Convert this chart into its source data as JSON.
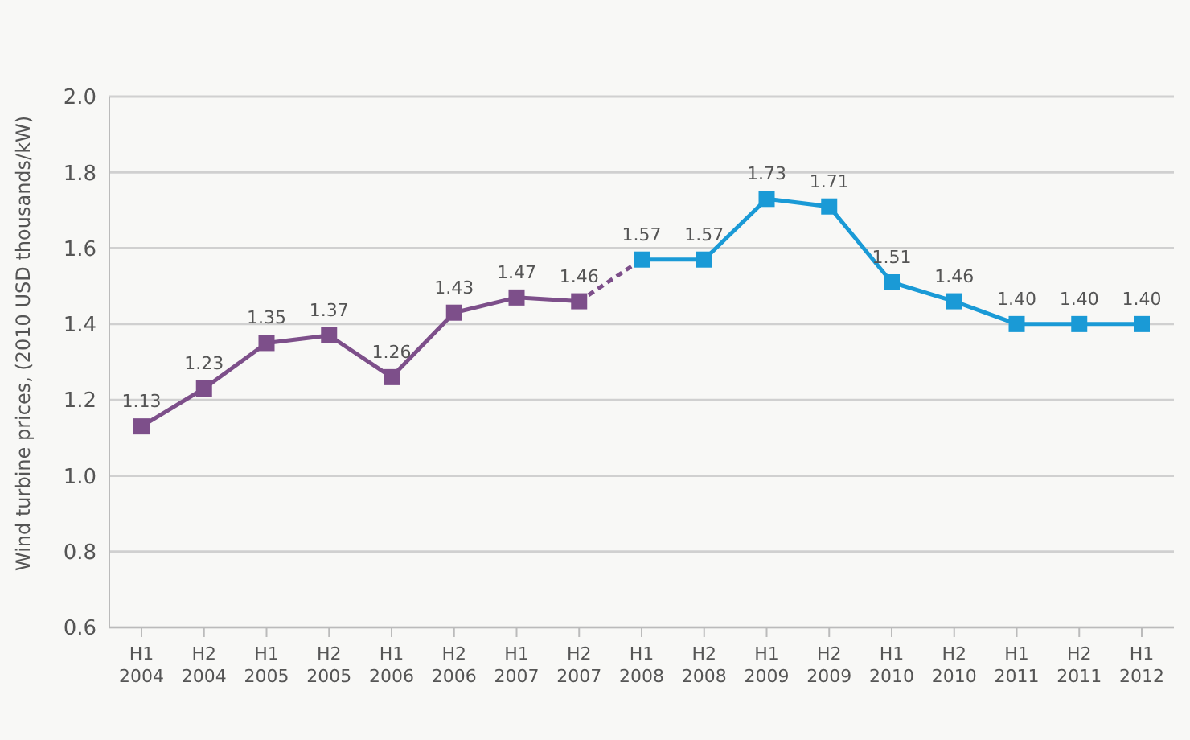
{
  "chart_data": {
    "type": "line",
    "ylabel": "Wind turbine prices, (2010 USD thousands/kW)",
    "categories": [
      "H1 2004",
      "H2 2004",
      "H1 2005",
      "H2 2005",
      "H1 2006",
      "H2 2006",
      "H1 2007",
      "H2 2007",
      "H1 2008",
      "H2 2008",
      "H1 2009",
      "H2 2009",
      "H1 2010",
      "H2 2010",
      "H1 2011",
      "H2 2011",
      "H1 2012"
    ],
    "series": [
      {
        "color": "#7d4f8a",
        "marker": "square",
        "line_style": "solid",
        "values": [
          1.13,
          1.23,
          1.35,
          1.37,
          1.26,
          1.43,
          1.47,
          1.46,
          null,
          null,
          null,
          null,
          null,
          null,
          null,
          null,
          null
        ],
        "value_labels": [
          "1.13",
          "1.23",
          "1.35",
          "1.37",
          "1.26",
          "1.43",
          "1.47",
          "1.46",
          null,
          null,
          null,
          null,
          null,
          null,
          null,
          null,
          null
        ]
      },
      {
        "color": "#7d4f8a",
        "marker": "none",
        "line_style": "dashed",
        "values": [
          null,
          null,
          null,
          null,
          null,
          null,
          null,
          1.46,
          1.57,
          null,
          null,
          null,
          null,
          null,
          null,
          null,
          null
        ]
      },
      {
        "color": "#1a9ad6",
        "marker": "square",
        "line_style": "solid",
        "values": [
          null,
          null,
          null,
          null,
          null,
          null,
          null,
          null,
          1.57,
          1.57,
          1.73,
          1.71,
          1.51,
          1.46,
          1.4,
          1.4,
          1.4
        ],
        "value_labels": [
          null,
          null,
          null,
          null,
          null,
          null,
          null,
          null,
          "1.57",
          "1.57",
          "1.73",
          "1.71",
          "1.51",
          "1.46",
          "1.40",
          "1.40",
          "1.40"
        ]
      }
    ],
    "ylim": [
      0.6,
      2.0
    ],
    "yticks": [
      {
        "value": 0.6,
        "label": "0.6"
      },
      {
        "value": 0.8,
        "label": "0.8"
      },
      {
        "value": 1.0,
        "label": "1.0"
      },
      {
        "value": 1.2,
        "label": "1.2"
      },
      {
        "value": 1.4,
        "label": "1.4"
      },
      {
        "value": 1.6,
        "label": "1.6"
      },
      {
        "value": 1.8,
        "label": "1.8"
      },
      {
        "value": 2.0,
        "label": "2.0"
      }
    ],
    "grid": "y"
  }
}
